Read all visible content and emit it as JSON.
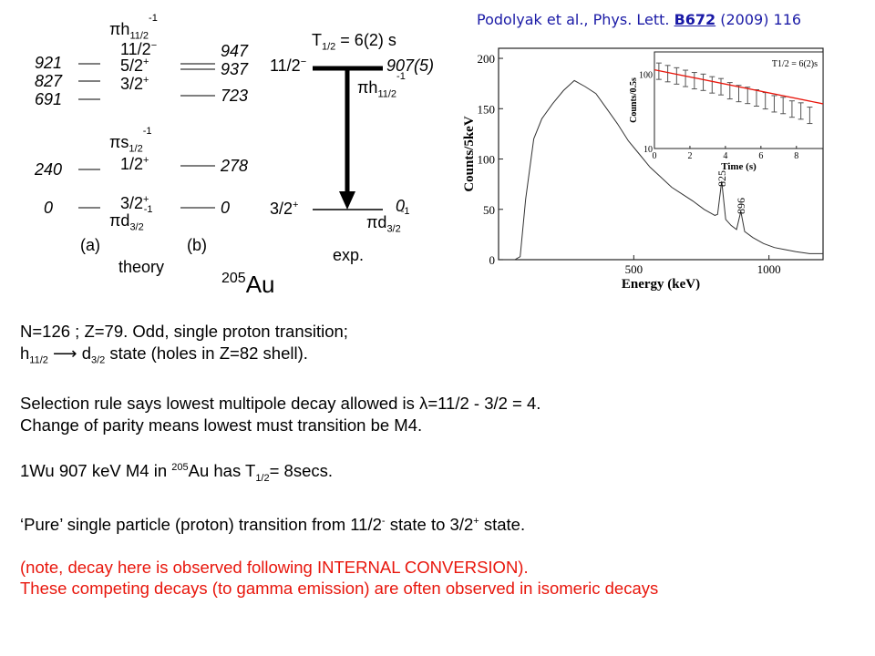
{
  "citation": {
    "authors": "Podolyak et al., Phys. Lett. ",
    "volume": "B672",
    "rest": " (2009) 116"
  },
  "scheme": {
    "theory_a_levels": [
      "921",
      "827",
      "691",
      "240",
      "0"
    ],
    "theory_b_levels": [
      "947",
      "937",
      "723",
      "278",
      "0"
    ],
    "configs": {
      "h_pi": "πh",
      "h_sub": "11/2",
      "h_sup": "-1",
      "spin_11_2": "11/2",
      "spin_11_2_sup": "−",
      "spin_5_2": "5/2",
      "spin_5_2_sup": "+",
      "spin_3_2_top": "3/2",
      "spin_3_2_top_sup": "+",
      "s_pi": "πs",
      "s_sub": "1/2",
      "s_sup": "-1",
      "spin_1_2": "1/2",
      "spin_1_2_sup": "+",
      "spin_3_2_low": "3/2",
      "spin_3_2_low_sup": "+",
      "d_pi": "πd",
      "d_sub": "3/2",
      "d_sup": "-1"
    },
    "label_a": "(a)",
    "label_b": "(b)",
    "label_theory": "theory",
    "exp": {
      "halflife": "T",
      "halflife_sub": "1/2",
      "halflife_val": " = 6(2) s",
      "upper_spin": "11/2",
      "upper_spin_sup": "−",
      "upper_energy": "907",
      "upper_energy_err": "(5)",
      "lower_spin": "3/2",
      "lower_spin_sup": "+",
      "lower_energy": "0",
      "h_pi": "πh",
      "h_sub": "11/2",
      "h_sup": "-1",
      "d_pi": "πd",
      "d_sub": "3/2",
      "d_sup": "-1",
      "label": "exp."
    },
    "nucleus_mass": "205",
    "nucleus_symbol": "Au"
  },
  "chart_data": [
    {
      "type": "line",
      "xlabel": "Energy (keV)",
      "ylabel": "Counts/5keV",
      "xlim": [
        0,
        1200
      ],
      "ylim": [
        0,
        210
      ],
      "x_ticks": [
        "500",
        "1000"
      ],
      "y_ticks": [
        "0",
        "50",
        "100",
        "150",
        "200"
      ],
      "peaks": [
        "825",
        "896"
      ],
      "x": [
        0,
        60,
        80,
        100,
        130,
        160,
        200,
        240,
        280,
        320,
        360,
        400,
        440,
        480,
        520,
        560,
        600,
        640,
        680,
        720,
        760,
        800,
        810,
        825,
        840,
        860,
        880,
        896,
        910,
        940,
        980,
        1020,
        1060,
        1100,
        1150,
        1200
      ],
      "y": [
        0,
        0,
        3,
        60,
        120,
        140,
        155,
        168,
        178,
        172,
        165,
        150,
        135,
        118,
        105,
        92,
        82,
        72,
        65,
        58,
        50,
        44,
        45,
        78,
        40,
        34,
        30,
        48,
        28,
        22,
        16,
        12,
        10,
        8,
        6,
        6
      ]
    },
    {
      "type": "scatter",
      "title": "T1/2 = 6(2)s",
      "xlabel": "Time (s)",
      "ylabel": "Counts/0.5s",
      "log_y": true,
      "xlim": [
        0,
        9.5
      ],
      "x_ticks": [
        "0",
        "2",
        "4",
        "6",
        "8"
      ],
      "y_ticks": [
        "10",
        "100"
      ],
      "x": [
        0.25,
        0.75,
        1.25,
        1.75,
        2.25,
        2.75,
        3.25,
        3.75,
        4.25,
        4.75,
        5.25,
        5.75,
        6.25,
        6.75,
        7.25,
        7.75,
        8.25,
        8.75
      ],
      "y": [
        110,
        102,
        95,
        88,
        82,
        78,
        72,
        68,
        60,
        55,
        52,
        48,
        44,
        40,
        38,
        34,
        32,
        28
      ],
      "fit": {
        "x": [
          0,
          9.5
        ],
        "y": [
          115,
          40
        ]
      }
    }
  ],
  "body": {
    "line1": "N=126 ; Z=79. Odd, single proton transition;",
    "line2_a": "h",
    "line2_sub1": "11/2",
    "line2_b": " ⟶ d",
    "line2_sub2": "3/2",
    "line2_c": " state (holes in Z=82 shell).",
    "line3_a": "Selection rule says lowest multipole decay allowed is ",
    "line3_lambda": "λ",
    "line3_b": "=11/2 - 3/2 = 4.",
    "line4": "Change of parity means lowest must transition be M4.",
    "line5_a": "1Wu 907 keV M4 in ",
    "line5_sup": "205",
    "line5_b": "Au has T",
    "line5_sub": "1/2",
    "line5_c": "= 8secs.",
    "line6_a": "‘Pure’ single particle (proton) transition from 11/2",
    "line6_sup1": "-",
    "line6_b": " state to 3/2",
    "line6_sup2": "+",
    "line6_c": " state.",
    "red1": "(note, decay here is observed following INTERNAL CONVERSION).",
    "red2": "These competing decays (to gamma emission) are often observed in isomeric decays"
  }
}
